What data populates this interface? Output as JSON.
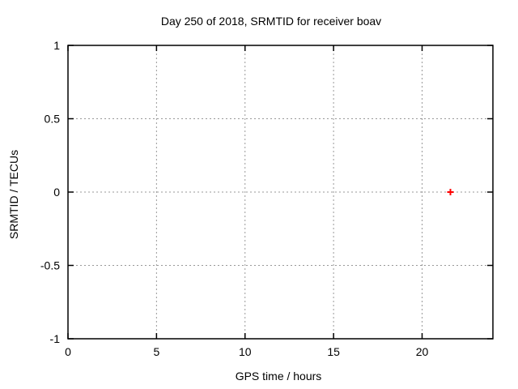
{
  "chart_data": {
    "type": "scatter",
    "title": "Day 250 of 2018, SRMTID for receiver boav",
    "xlabel": "GPS time / hours",
    "ylabel": "SRMTID / TECUs",
    "xlim": [
      0,
      24
    ],
    "ylim": [
      -1,
      1
    ],
    "xticks": [
      {
        "v": 0,
        "label": "0"
      },
      {
        "v": 5,
        "label": "5"
      },
      {
        "v": 10,
        "label": "10"
      },
      {
        "v": 15,
        "label": "15"
      },
      {
        "v": 20,
        "label": "20"
      }
    ],
    "yticks": [
      {
        "v": -1,
        "label": "-1"
      },
      {
        "v": -0.5,
        "label": "-0.5"
      },
      {
        "v": 0,
        "label": "0"
      },
      {
        "v": 0.5,
        "label": "0.5"
      },
      {
        "v": 1,
        "label": "1"
      }
    ],
    "grid": true,
    "grid_style": "dotted",
    "legend_visible": false,
    "series": [
      {
        "marker": "plus",
        "color": "#ff0000",
        "points": [
          {
            "x": 21.6,
            "y": 0
          }
        ]
      }
    ],
    "colors": {
      "background": "#ffffff",
      "axis": "#000000",
      "grid": "#999999",
      "text": "#000000"
    }
  }
}
